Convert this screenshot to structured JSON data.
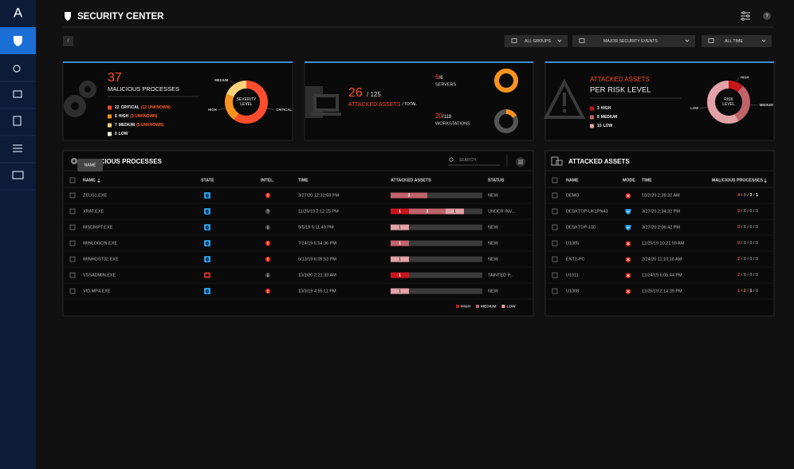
{
  "sidebar": {
    "logo": "A"
  },
  "header": {
    "title": "SECURITY CENTER",
    "breadcrumb": "/",
    "help": "?"
  },
  "filters": [
    "ALL GROUPS",
    "MAJOR SECURITY EVENTS",
    "ALL TIME"
  ],
  "cards": {
    "processes": {
      "count": 37,
      "label": "MALICIOUS PROCESSES",
      "donut_label": "SEVERITY LEVEL",
      "levels": [
        {
          "count": 22,
          "name": "CRITICAL",
          "unknown": "(12 UNKNOWN)",
          "color": "#ff4d2e"
        },
        {
          "count": 8,
          "name": "HIGH",
          "unknown": "(3 UNKNOWN)",
          "color": "#f7931e"
        },
        {
          "count": 7,
          "name": "MEDIUM",
          "unknown": "(5 UNKNOWN)",
          "color": "#ffd27a"
        },
        {
          "count": 0,
          "name": "LOW",
          "color": "#fff3d6"
        }
      ]
    },
    "assets": {
      "count": 26,
      "total": {
        "value": 125,
        "label": "/ 125"
      },
      "label": "ATTACKED ASSETS",
      "label_suffix": "/ TOTAL",
      "color": "#f7931e",
      "groups": [
        {
          "count": 6,
          "total": {
            "value": 6,
            "label": "/6"
          },
          "name": "SERVERS"
        },
        {
          "count": 20,
          "total": {
            "value": 119,
            "label": "/119"
          },
          "name": "WORKSTATIONS"
        }
      ]
    },
    "risk": {
      "title": "ATTACKED ASSETS",
      "subtitle": "PER RISK LEVEL",
      "donut_label": "RISK LEVEL",
      "levels": [
        {
          "count": 3,
          "name": "HIGH",
          "color": "#c8161d"
        },
        {
          "count": 8,
          "name": "MEDIUM",
          "color": "#c0636a"
        },
        {
          "count": 15,
          "name": "LOW",
          "color": "#e3a2a7"
        }
      ]
    }
  },
  "processes_table": {
    "title": "MALICIOUS PROCESSES",
    "tooltip": "NAME",
    "search": "SEARCH",
    "columns": [
      "NAME",
      "STATE",
      "INTEL.",
      "TIME",
      "ATTACKED ASSETS",
      "STATUS"
    ],
    "legend": [
      {
        "name": "HIGH",
        "color": "#c8161d"
      },
      {
        "name": "MEDIUM",
        "color": "#c0636a"
      },
      {
        "name": "LOW",
        "color": "#e3a2a7"
      }
    ],
    "rows": [
      {
        "name": "ZEUS1.EXE",
        "state": "blue",
        "intel": "alert",
        "time": "3/27/20 12:32:59 PM",
        "attacked": [
          0,
          2,
          0
        ],
        "status": "NEW"
      },
      {
        "name": "XRAT.EXE",
        "state": "blue",
        "intel": "unknown",
        "time": "11/25/19 2:12:25 PM",
        "attacked": [
          1,
          2,
          1
        ],
        "status": "UNDER INV..."
      },
      {
        "name": "WSCRIPT.EXE",
        "state": "blue",
        "intel": "info",
        "time": "9/5/19 5:11:49 PM",
        "attacked": [
          0,
          0,
          1
        ],
        "status": "NEW"
      },
      {
        "name": "WINLOGON.EXE",
        "state": "blue",
        "intel": "alert",
        "time": "7/24/19 5:54:36 PM",
        "attacked": [
          0,
          1,
          0
        ],
        "status": "NEW"
      },
      {
        "name": "WINHOST32.EXE",
        "state": "blue",
        "intel": "alert",
        "time": "6/13/19 6:09:53 PM",
        "attacked": [
          0,
          0,
          1
        ],
        "status": "NEW"
      },
      {
        "name": "VSSADMIN.EXE",
        "state": "red",
        "intel": "info",
        "time": "10/2/20 2:21:33 AM",
        "attacked": [
          1,
          0,
          0
        ],
        "status": "TAINTED P..."
      },
      {
        "name": "VID.MP4.EXE",
        "state": "blue",
        "intel": "alert",
        "time": "10/3/19 4:55:11 PM",
        "attacked": [
          0,
          0,
          1
        ],
        "status": "NEW"
      }
    ]
  },
  "assets_table": {
    "title": "ATTACKED ASSETS",
    "separator": "/",
    "columns": [
      "NAME",
      "MODE",
      "TIME",
      "MALICIOUS PROCESSES"
    ],
    "rows": [
      {
        "name": "DEMO",
        "mode": "attacked",
        "time": "10/2/20 2:28:32 AM",
        "processes": [
          4,
          0,
          3,
          1
        ]
      },
      {
        "name": "DESKTOP-UK1PN43",
        "mode": "protected",
        "time": "3/27/20 2:34:32 PM",
        "processes": [
          3,
          0,
          0,
          0
        ]
      },
      {
        "name": "DESKTOP-100",
        "mode": "protected",
        "time": "3/27/20 2:06:42 PM",
        "processes": [
          3,
          0,
          0,
          0
        ]
      },
      {
        "name": "U1005",
        "mode": "attacked",
        "time": "11/25/19 10:21:59 AM",
        "processes": [
          3,
          0,
          0,
          0
        ]
      },
      {
        "name": "ENT1-PC",
        "mode": "attacked",
        "time": "2/24/20 11:10:16 AM",
        "processes": [
          2,
          0,
          0,
          0
        ]
      },
      {
        "name": "U1011",
        "mode": "attacked",
        "time": "11/24/19 6:05:44 PM",
        "processes": [
          2,
          0,
          0,
          0
        ]
      },
      {
        "name": "U1008",
        "mode": "attacked",
        "time": "11/25/19 2:14:39 PM",
        "processes": [
          1,
          2,
          1,
          0
        ]
      }
    ]
  }
}
